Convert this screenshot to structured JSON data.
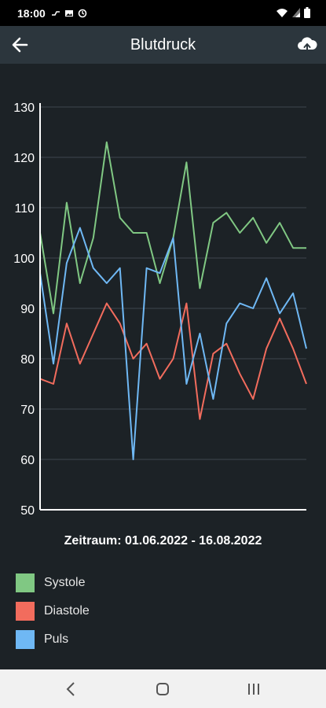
{
  "status": {
    "time": "18:00",
    "left_icons": [
      "notification-icon",
      "image-icon",
      "sync-icon"
    ],
    "right_icons": [
      "wifi-icon",
      "signal-icon",
      "battery-icon"
    ]
  },
  "app_bar": {
    "title": "Blutdruck",
    "back_icon": "arrow-left-icon",
    "action_icon": "cloud-upload-icon"
  },
  "period_label": "Zeitraum: 01.06.2022 - 16.08.2022",
  "legend": [
    {
      "label": "Systole",
      "color": "#80c883"
    },
    {
      "label": "Diastole",
      "color": "#f26c5d"
    },
    {
      "label": "Puls",
      "color": "#6fb8f4"
    }
  ],
  "chart_data": {
    "type": "line",
    "ylim": [
      50,
      130
    ],
    "yticks": [
      50,
      60,
      70,
      80,
      90,
      100,
      110,
      120,
      130
    ],
    "grid": true,
    "series": [
      {
        "name": "Systole",
        "color": "#80c883",
        "values": [
          105,
          89,
          111,
          95,
          104,
          123,
          108,
          105,
          105,
          95,
          104,
          119,
          94,
          107,
          109,
          105,
          108,
          103,
          107,
          102,
          102
        ]
      },
      {
        "name": "Diastole",
        "color": "#f26c5d",
        "values": [
          76,
          75,
          87,
          79,
          85,
          91,
          87,
          80,
          83,
          76,
          80,
          91,
          68,
          81,
          83,
          77,
          72,
          82,
          88,
          82,
          75
        ]
      },
      {
        "name": "Puls",
        "color": "#6fb8f4",
        "values": [
          97,
          79,
          99,
          106,
          98,
          95,
          98,
          60,
          98,
          97,
          104,
          75,
          85,
          72,
          87,
          91,
          90,
          96,
          89,
          93,
          82
        ]
      }
    ]
  },
  "nav": {
    "back_icon": "chevron-left-icon",
    "home_icon": "home-icon",
    "recents_icon": "recents-icon"
  }
}
